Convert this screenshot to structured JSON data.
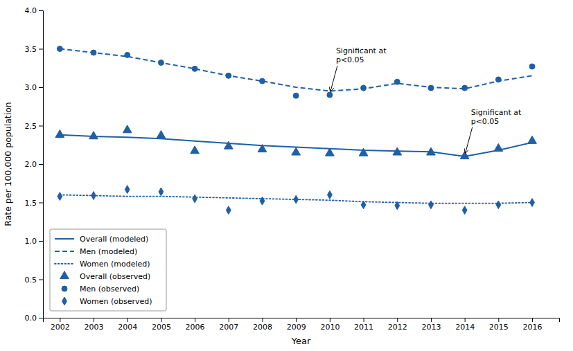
{
  "chart_data": {
    "type": "line",
    "xlabel": "Year",
    "ylabel": "Rate per 100,000 population",
    "x": [
      2002,
      2003,
      2004,
      2005,
      2006,
      2007,
      2008,
      2009,
      2010,
      2011,
      2012,
      2013,
      2014,
      2015,
      2016
    ],
    "xlim": [
      2001.5,
      2016.8
    ],
    "xticks": [
      2002,
      2003,
      2004,
      2005,
      2006,
      2007,
      2008,
      2009,
      2010,
      2011,
      2012,
      2013,
      2014,
      2015,
      2016
    ],
    "ylim": [
      0.0,
      4.0
    ],
    "yticks": [
      {
        "value": 0.0,
        "label": "0.0"
      },
      0.5,
      {
        "value": 1.0,
        "label": "1.0"
      },
      1.5,
      {
        "value": 2.0,
        "label": "2.0"
      },
      2.5,
      {
        "value": 3.0,
        "label": "3.0"
      },
      3.5,
      {
        "value": 4.0,
        "label": "4.0"
      }
    ],
    "grid": false,
    "legend": "lower left",
    "series": [
      {
        "name": "Overall (modeled)",
        "type": "line",
        "line_style": "solid",
        "color": "#1F5FA6",
        "values": [
          2.38,
          2.36,
          2.35,
          2.33,
          2.3,
          2.27,
          2.24,
          2.22,
          2.2,
          2.18,
          2.17,
          2.16,
          2.1,
          2.18,
          2.28
        ]
      },
      {
        "name": "Men (modeled)",
        "type": "line",
        "line_style": "dashed",
        "color": "#1F5FA6",
        "values": [
          3.5,
          3.45,
          3.4,
          3.32,
          3.24,
          3.15,
          3.08,
          3.0,
          2.95,
          2.98,
          3.05,
          3.0,
          2.98,
          3.08,
          3.15
        ]
      },
      {
        "name": "Women (modeled)",
        "type": "line",
        "line_style": "dotted",
        "color": "#1F5FA6",
        "values": [
          1.6,
          1.59,
          1.58,
          1.58,
          1.57,
          1.56,
          1.55,
          1.54,
          1.53,
          1.51,
          1.5,
          1.49,
          1.49,
          1.49,
          1.5
        ]
      },
      {
        "name": "Overall (observed)",
        "type": "scatter",
        "marker": "triangle",
        "color": "#1F5FA6",
        "values": [
          2.38,
          2.36,
          2.44,
          2.37,
          2.17,
          2.23,
          2.19,
          2.15,
          2.14,
          2.14,
          2.15,
          2.15,
          2.1,
          2.2,
          2.3
        ]
      },
      {
        "name": "Men (observed)",
        "type": "scatter",
        "marker": "circle",
        "color": "#1F5FA6",
        "values": [
          3.5,
          3.45,
          3.42,
          3.32,
          3.24,
          3.15,
          3.08,
          2.89,
          2.9,
          2.99,
          3.07,
          2.99,
          2.99,
          3.1,
          3.27
        ]
      },
      {
        "name": "Women (observed)",
        "type": "scatter",
        "marker": "diamond",
        "color": "#1F5FA6",
        "values": [
          1.58,
          1.59,
          1.67,
          1.64,
          1.55,
          1.4,
          1.52,
          1.54,
          1.6,
          1.47,
          1.46,
          1.47,
          1.4,
          1.47,
          1.5
        ]
      }
    ],
    "annotations": [
      {
        "text": "Significant at\np<0.05",
        "x": 2010,
        "y": 2.9
      },
      {
        "text": "Significant at\np<0.05",
        "x": 2014,
        "y": 2.1
      }
    ]
  }
}
